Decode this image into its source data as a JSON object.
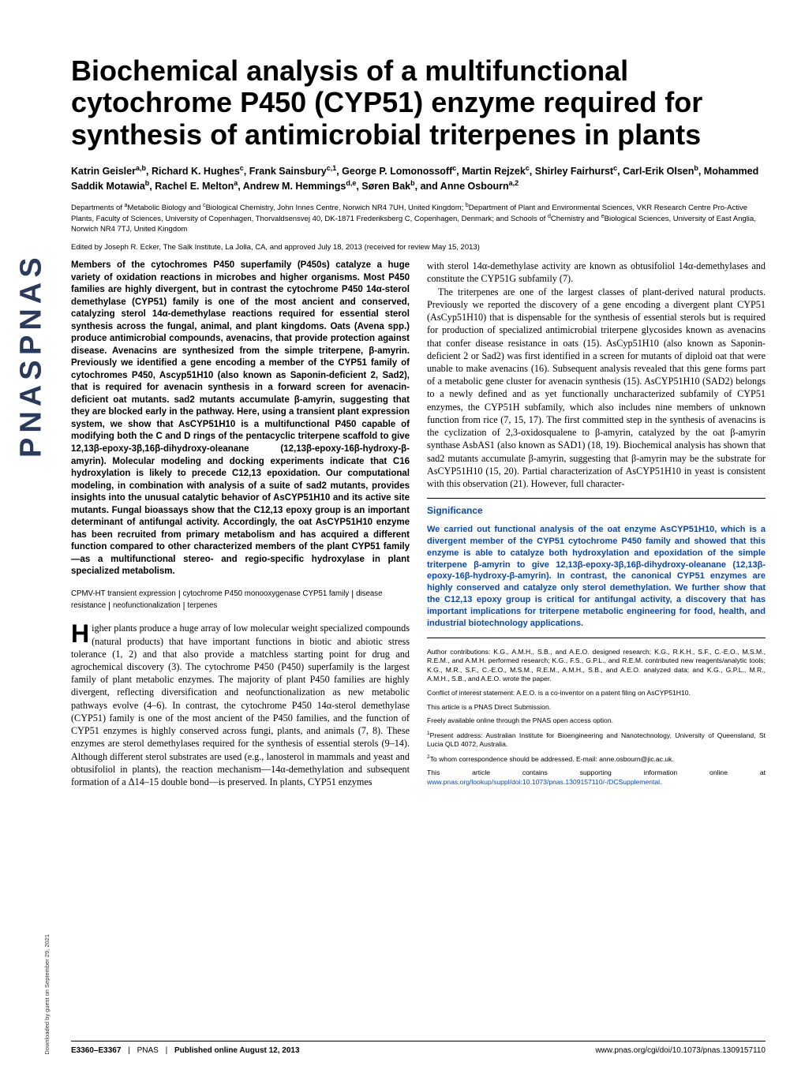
{
  "logo": "PNAS  PNAS",
  "downloaded": "Downloaded by guest on September 29, 2021",
  "title": "Biochemical analysis of a multifunctional cytochrome P450 (CYP51) enzyme required for synthesis of antimicrobial triterpenes in plants",
  "authors_html": "Katrin Geisler<sup>a,b</sup>, Richard K. Hughes<sup>c</sup>, Frank Sainsbury<sup>c,1</sup>, George P. Lomonossoff<sup>c</sup>, Martin Rejzek<sup>c</sup>, Shirley Fairhurst<sup>c</sup>, Carl-Erik Olsen<sup>b</sup>, Mohammed Saddik Motawia<sup>b</sup>, Rachel E. Melton<sup>a</sup>, Andrew M. Hemmings<sup>d,e</sup>, Søren Bak<sup>b</sup>, and Anne Osbourn<sup>a,2</sup>",
  "affiliations_html": "Departments of <sup>a</sup>Metabolic Biology and <sup>c</sup>Biological Chemistry, John Innes Centre, Norwich NR4 7UH, United Kingdom; <sup>b</sup>Department of Plant and Environmental Sciences, VKR Research Centre Pro-Active Plants, Faculty of Sciences, University of Copenhagen, Thorvaldsensvej 40, DK-1871 Frederiksberg C, Copenhagen, Denmark; and Schools of <sup>d</sup>Chemistry and <sup>e</sup>Biological Sciences, University of East Anglia, Norwich NR4 7TJ, United Kingdom",
  "edited": "Edited by Joseph R. Ecker, The Salk Institute, La Jolla, CA, and approved July 18, 2013 (received for review May 15, 2013)",
  "abstract": "Members of the cytochromes P450 superfamily (P450s) catalyze a huge variety of oxidation reactions in microbes and higher organisms. Most P450 families are highly divergent, but in contrast the cytochrome P450 14α-sterol demethylase (CYP51) family is one of the most ancient and conserved, catalyzing sterol 14α-demethylase reactions required for essential sterol synthesis across the fungal, animal, and plant kingdoms. Oats (Avena spp.) produce antimicrobial compounds, avenacins, that provide protection against disease. Avenacins are synthesized from the simple triterpene, β-amyrin. Previously we identified a gene encoding a member of the CYP51 family of cytochromes P450, Ascyp51H10 (also known as Saponin-deficient 2, Sad2), that is required for avenacin synthesis in a forward screen for avenacin-deficient oat mutants. sad2 mutants accumulate β-amyrin, suggesting that they are blocked early in the pathway. Here, using a transient plant expression system, we show that AsCYP51H10 is a multifunctional P450 capable of modifying both the C and D rings of the pentacyclic triterpene scaffold to give 12,13β-epoxy-3β,16β-dihydroxy-oleanane (12,13β-epoxy-16β-hydroxy-β-amyrin). Molecular modeling and docking experiments indicate that C16 hydroxylation is likely to precede C12,13 epoxidation. Our computational modeling, in combination with analysis of a suite of sad2 mutants, provides insights into the unusual catalytic behavior of AsCYP51H10 and its active site mutants. Fungal bioassays show that the C12,13 epoxy group is an important determinant of antifungal activity. Accordingly, the oat AsCYP51H10 enzyme has been recruited from primary metabolism and has acquired a different function compared to other characterized members of the plant CYP51 family—as a multifunctional stereo- and regio-specific hydroxylase in plant specialized metabolism.",
  "keywords": {
    "items": [
      "CPMV-HT transient expression",
      "cytochrome P450 monooxygenase CYP51 family",
      "disease resistance",
      "neofunctionalization",
      "terpenes"
    ]
  },
  "body_col1": "igher plants produce a huge array of low molecular weight specialized compounds (natural products) that have important functions in biotic and abiotic stress tolerance (1, 2) and that also provide a matchless starting point for drug and agrochemical discovery (3). The cytochrome P450 (P450) superfamily is the largest family of plant metabolic enzymes. The majority of plant P450 families are highly divergent, reflecting diversification and neofunctionalization as new metabolic pathways evolve (4–6). In contrast, the cytochrome P450 14α-sterol demethylase (CYP51) family is one of the most ancient of the P450 families, and the function of CYP51 enzymes is highly conserved across fungi, plants, and animals (7, 8). These enzymes are sterol demethylases required for the synthesis of essential sterols (9–14). Although different sterol substrates are used (e.g., lanosterol in mammals and yeast and obtusifoliol in plants), the reaction mechanism—14α-demethylation and subsequent formation of a Δ14–15 double bond—is preserved. In plants, CYP51 enzymes",
  "body_col2_p1": "with sterol 14α-demethylase activity are known as obtusifoliol 14α-demethylases and constitute the CYP51G subfamily (7).",
  "body_col2_p2": "The triterpenes are one of the largest classes of plant-derived natural products. Previously we reported the discovery of a gene encoding a divergent plant CYP51 (AsCyp51H10) that is dispensable for the synthesis of essential sterols but is required for production of specialized antimicrobial triterpene glycosides known as avenacins that confer disease resistance in oats (15). AsCyp51H10 (also known as Saponin-deficient 2 or Sad2) was first identified in a screen for mutants of diploid oat that were unable to make avenacins (16). Subsequent analysis revealed that this gene forms part of a metabolic gene cluster for avenacin synthesis (15). AsCYP51H10 (SAD2) belongs to a newly defined and as yet functionally uncharacterized subfamily of CYP51 enzymes, the CYP51H subfamily, which also includes nine members of unknown function from rice (7, 15, 17). The first committed step in the synthesis of avenacins is the cyclization of 2,3-oxidosqualene to β-amyrin, catalyzed by the oat β-amyrin synthase AsbAS1 (also known as SAD1) (18, 19). Biochemical analysis has shown that sad2 mutants accumulate β-amyrin, suggesting that β-amyrin may be the substrate for AsCYP51H10 (15, 20). Partial characterization of AsCYP51H10 in yeast is consistent with this observation (21). However, full character-",
  "significance": {
    "heading": "Significance",
    "text": "We carried out functional analysis of the oat enzyme AsCYP51H10, which is a divergent member of the CYP51 cytochrome P450 family and showed that this enzyme is able to catalyze both hydroxylation and epoxidation of the simple triterpene β-amyrin to give 12,13β-epoxy-3β,16β-dihydroxy-oleanane (12,13β-epoxy-16β-hydroxy-β-amyrin). In contrast, the canonical CYP51 enzymes are highly conserved and catalyze only sterol demethylation. We further show that the C12,13 epoxy group is critical for antifungal activity, a discovery that has important implications for triterpene metabolic engineering for food, health, and industrial biotechnology applications."
  },
  "footnotes": {
    "contrib": "Author contributions: K.G., A.M.H., S.B., and A.E.O. designed research; K.G., R.K.H., S.F., C.-E.O., M.S.M., R.E.M., and A.M.H. performed research; K.G., F.S., G.P.L., and R.E.M. contributed new reagents/analytic tools; K.G., M.R., S.F., C.-E.O., M.S.M., R.E.M., A.M.H., S.B., and A.E.O. analyzed data; and K.G., G.P.L., M.R., A.M.H., S.B., and A.E.O. wrote the paper.",
    "coi": "Conflict of interest statement: A.E.O. is a co-inventor on a patent filing on AsCYP51H10.",
    "direct": "This article is a PNAS Direct Submission.",
    "open": "Freely available online through the PNAS open access option.",
    "addr1": "Present address: Australian Institute for Bioengineering and Nanotechnology, University of Queensland, St Lucia QLD 4072, Australia.",
    "addr2": "To whom correspondence should be addressed. E-mail: anne.osbourn@jic.ac.uk.",
    "si_pre": "This article contains supporting information online at ",
    "si_link": "www.pnas.org/lookup/suppl/doi:10.1073/pnas.1309157110/-/DCSupplemental",
    "si_post": "."
  },
  "footer": {
    "pages": "E3360–E3367",
    "journal": "PNAS",
    "pubdate": "Published online August 12, 2013",
    "doi": "www.pnas.org/cgi/doi/10.1073/pnas.1309157110"
  },
  "colors": {
    "link": "#0a47a8",
    "text": "#000000"
  }
}
